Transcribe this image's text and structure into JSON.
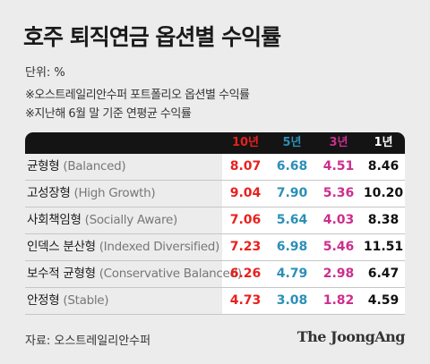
{
  "title": "호주 퇴직연금 옵션별 수익률",
  "unit": "단위: %",
  "notes": [
    "※오스트레일리안수퍼 포트폴리오 옵션별 수익률",
    "※지난해 6월 말 기준 연평균 수익률"
  ],
  "source": "자료: 오스트레일리안수퍼",
  "logo": "The JoongAng",
  "colors": {
    "ten_year": "#e8201e",
    "five_year": "#2b8fb7",
    "three_year": "#cc2e8e",
    "one_year": "#111111",
    "header_bg": "#141414",
    "page_bg": "#ececec"
  },
  "chart_data": {
    "type": "table",
    "columns": [
      "10년",
      "5년",
      "3년",
      "1년"
    ],
    "rows": [
      {
        "name": "균형형",
        "name_en": "(Balanced)",
        "values": [
          "8.07",
          "6.68",
          "4.51",
          "8.46"
        ]
      },
      {
        "name": "고성장형",
        "name_en": "(High Growth)",
        "values": [
          "9.04",
          "7.90",
          "5.36",
          "10.20"
        ]
      },
      {
        "name": "사회책임형",
        "name_en": "(Socially Aware)",
        "values": [
          "7.06",
          "5.64",
          "4.03",
          "8.38"
        ]
      },
      {
        "name": "인덱스 분산형",
        "name_en": "(Indexed Diversified)",
        "values": [
          "7.23",
          "6.98",
          "5.46",
          "11.51"
        ]
      },
      {
        "name": "보수적 균형형",
        "name_en": "(Conservative Balanced)",
        "values": [
          "6.26",
          "4.79",
          "2.98",
          "6.47"
        ]
      },
      {
        "name": "안정형",
        "name_en": "(Stable)",
        "values": [
          "4.73",
          "3.08",
          "1.82",
          "4.59"
        ]
      }
    ]
  }
}
